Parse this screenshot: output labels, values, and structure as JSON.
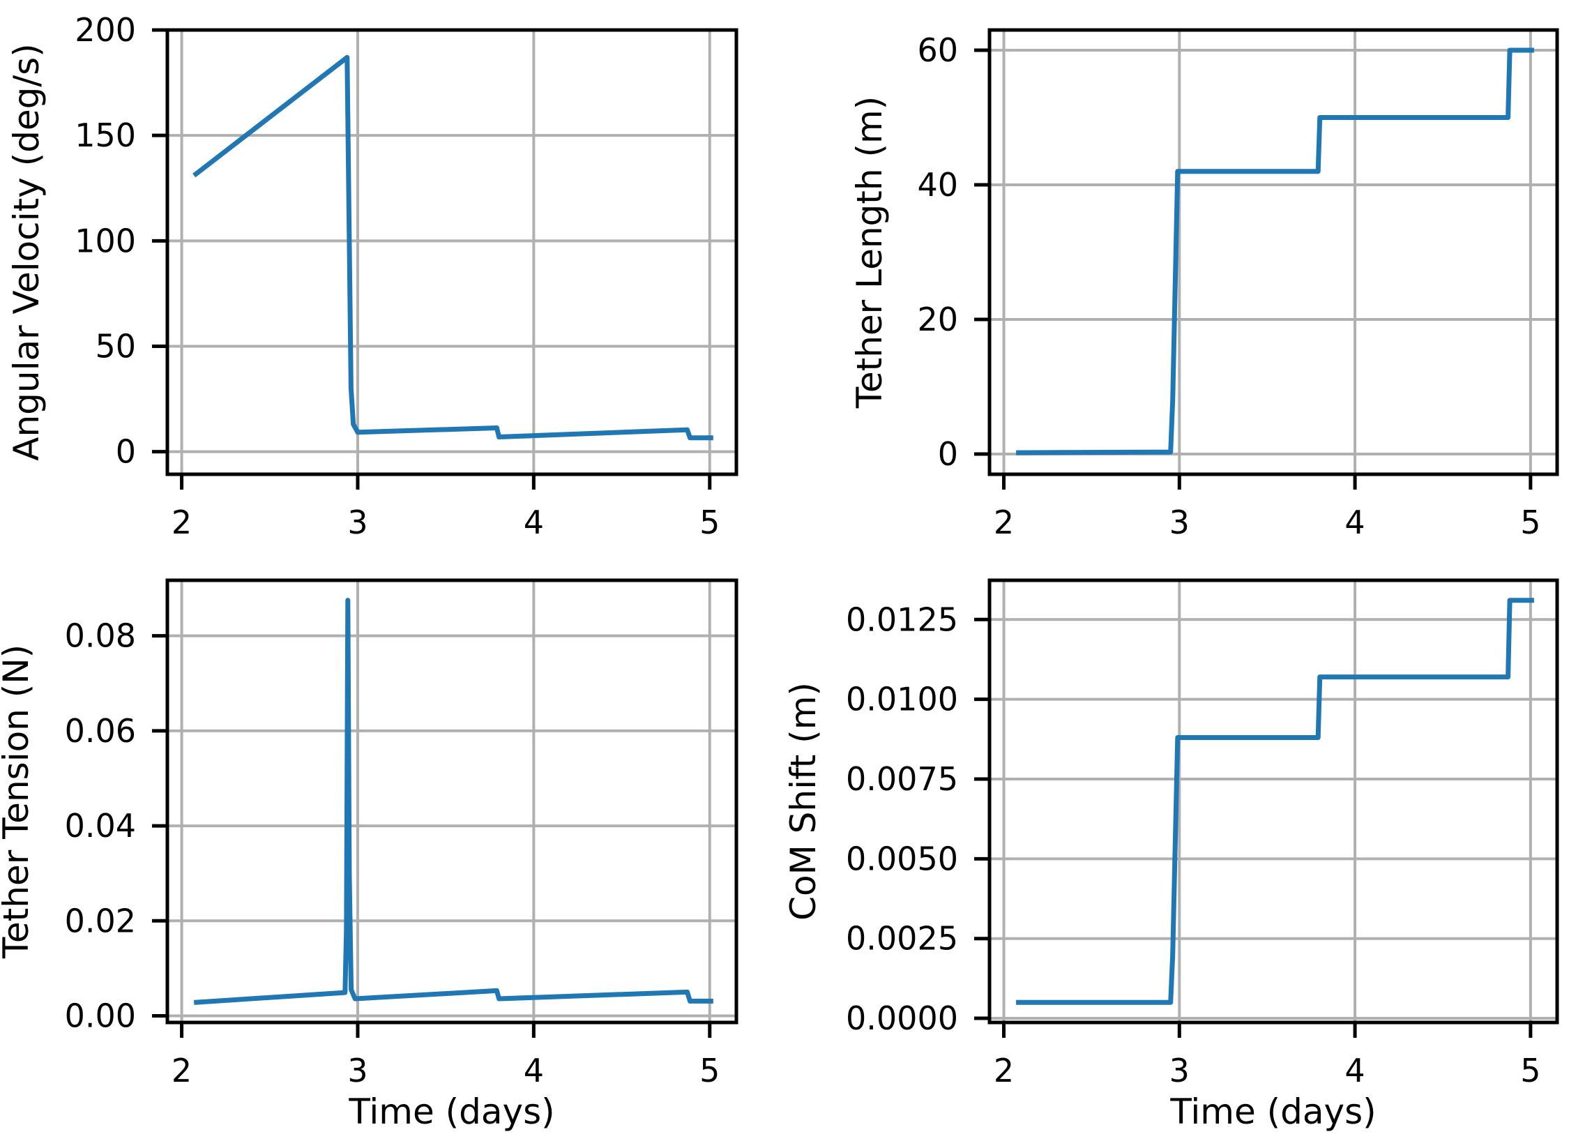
{
  "figure": {
    "background": "#ffffff",
    "line_color": "#1f77b4",
    "grid_color": "#b0b0b0",
    "spine_color": "#000000",
    "tick_color": "#000000",
    "text_color": "#000000"
  },
  "chart_data": [
    {
      "type": "line",
      "name": "angular-velocity",
      "xlabel": "",
      "ylabel": "Angular Velocity (deg/s)",
      "grid": true,
      "legend": null,
      "xlim": [
        1.9185,
        5.1515
      ],
      "ylim": [
        -10.7,
        200
      ],
      "x_ticks": [
        {
          "v": 2,
          "label": "2"
        },
        {
          "v": 3,
          "label": "3"
        },
        {
          "v": 4,
          "label": "4"
        },
        {
          "v": 5,
          "label": "5"
        }
      ],
      "y_ticks": [
        {
          "v": 0,
          "label": "0"
        },
        {
          "v": 50,
          "label": "50"
        },
        {
          "v": 100,
          "label": "100"
        },
        {
          "v": 150,
          "label": "150"
        },
        {
          "v": 200,
          "label": "200"
        }
      ],
      "points": [
        [
          2.07,
          131
        ],
        [
          2.94,
          187
        ],
        [
          2.952,
          100
        ],
        [
          2.962,
          30
        ],
        [
          2.975,
          13
        ],
        [
          3.0,
          9.2
        ],
        [
          3.79,
          11.3
        ],
        [
          3.803,
          7.0
        ],
        [
          4.872,
          10.4
        ],
        [
          4.888,
          6.6
        ],
        [
          5.02,
          6.6
        ]
      ],
      "ylabel_offset": -185
    },
    {
      "type": "line",
      "name": "tether-length",
      "xlabel": "",
      "ylabel": "Tether Length (m)",
      "grid": true,
      "legend": null,
      "xlim": [
        1.9185,
        5.1515
      ],
      "ylim": [
        -3,
        63
      ],
      "x_ticks": [
        {
          "v": 2,
          "label": "2"
        },
        {
          "v": 3,
          "label": "3"
        },
        {
          "v": 4,
          "label": "4"
        },
        {
          "v": 5,
          "label": "5"
        }
      ],
      "y_ticks": [
        {
          "v": 0,
          "label": "0"
        },
        {
          "v": 20,
          "label": "20"
        },
        {
          "v": 40,
          "label": "40"
        },
        {
          "v": 60,
          "label": "60"
        }
      ],
      "points": [
        [
          2.07,
          0.2
        ],
        [
          2.95,
          0.3
        ],
        [
          2.962,
          8
        ],
        [
          2.99,
          42
        ],
        [
          3.79,
          42
        ],
        [
          3.8,
          50
        ],
        [
          4.872,
          50
        ],
        [
          4.882,
          60
        ],
        [
          5.02,
          60
        ]
      ],
      "ylabel_offset": -155
    },
    {
      "type": "line",
      "name": "tether-tension",
      "xlabel": "Time (days)",
      "ylabel": "Tether Tension (N)",
      "grid": true,
      "legend": null,
      "xlim": [
        1.9185,
        5.1515
      ],
      "ylim": [
        -0.0014,
        0.0917
      ],
      "x_ticks": [
        {
          "v": 2,
          "label": "2"
        },
        {
          "v": 3,
          "label": "3"
        },
        {
          "v": 4,
          "label": "4"
        },
        {
          "v": 5,
          "label": "5"
        }
      ],
      "y_ticks": [
        {
          "v": 0.0,
          "label": "0.00"
        },
        {
          "v": 0.02,
          "label": "0.02"
        },
        {
          "v": 0.04,
          "label": "0.04"
        },
        {
          "v": 0.06,
          "label": "0.06"
        },
        {
          "v": 0.08,
          "label": "0.08"
        }
      ],
      "points": [
        [
          2.07,
          0.0028
        ],
        [
          2.928,
          0.0049
        ],
        [
          2.936,
          0.018
        ],
        [
          2.944,
          0.0875
        ],
        [
          2.952,
          0.03
        ],
        [
          2.963,
          0.0055
        ],
        [
          2.985,
          0.0036
        ],
        [
          3.79,
          0.0053
        ],
        [
          3.803,
          0.0036
        ],
        [
          4.872,
          0.005
        ],
        [
          4.888,
          0.0031
        ],
        [
          5.02,
          0.0031
        ]
      ],
      "ylabel_offset": -200
    },
    {
      "type": "line",
      "name": "com-shift",
      "xlabel": "Time (days)",
      "ylabel": "CoM Shift (m)",
      "grid": true,
      "legend": null,
      "xlim": [
        1.9185,
        5.1515
      ],
      "ylim": [
        -0.00013,
        0.01373
      ],
      "x_ticks": [
        {
          "v": 2,
          "label": "2"
        },
        {
          "v": 3,
          "label": "3"
        },
        {
          "v": 4,
          "label": "4"
        },
        {
          "v": 5,
          "label": "5"
        }
      ],
      "y_ticks": [
        {
          "v": 0.0,
          "label": "0.0000"
        },
        {
          "v": 0.0025,
          "label": "0.0025"
        },
        {
          "v": 0.005,
          "label": "0.0050"
        },
        {
          "v": 0.0075,
          "label": "0.0075"
        },
        {
          "v": 0.01,
          "label": "0.0100"
        },
        {
          "v": 0.0125,
          "label": "0.0125"
        }
      ],
      "points": [
        [
          2.07,
          0.0005
        ],
        [
          2.95,
          0.0005
        ],
        [
          2.962,
          0.002
        ],
        [
          2.99,
          0.0088
        ],
        [
          3.79,
          0.0088
        ],
        [
          3.8,
          0.0107
        ],
        [
          4.872,
          0.0107
        ],
        [
          4.882,
          0.0131
        ],
        [
          5.02,
          0.0131
        ]
      ],
      "ylabel_offset": -250
    }
  ]
}
